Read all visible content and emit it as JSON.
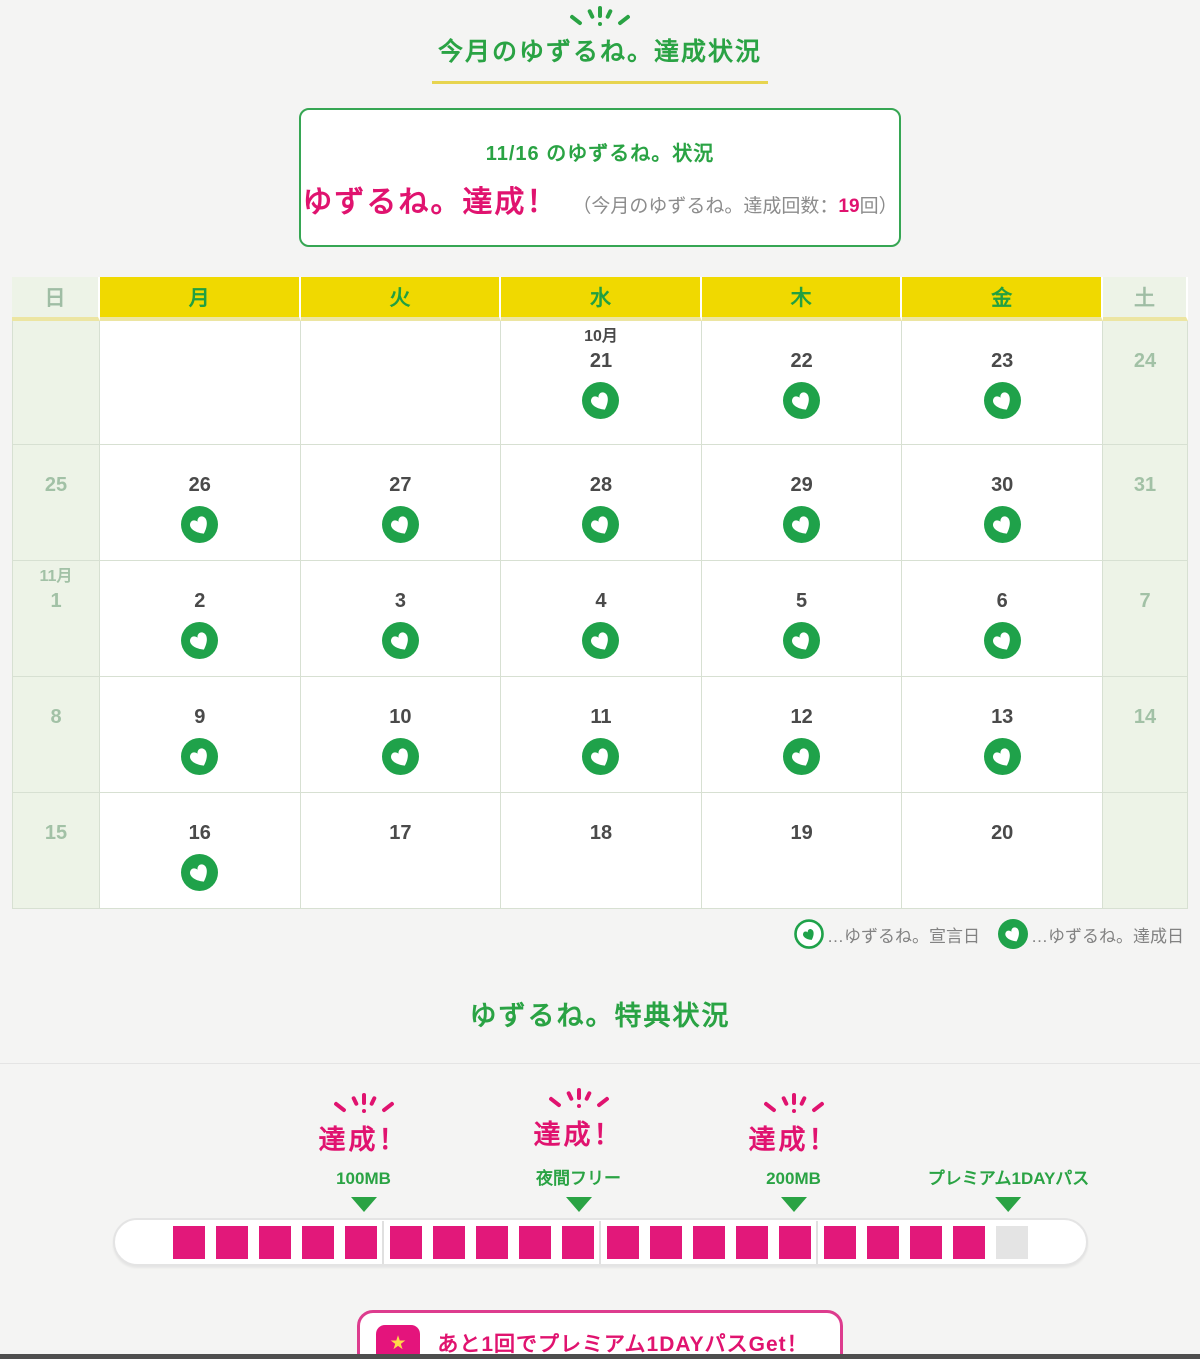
{
  "page": {
    "title": "今月のゆずるね。達成状況",
    "status_card": {
      "heading": "11/16 のゆずるね。状況",
      "result": "ゆずるね。達成！",
      "count_prefix": "（今月のゆずるね。達成回数：",
      "count_value": "19",
      "count_suffix": "回）"
    }
  },
  "calendar": {
    "day_headers": [
      "日",
      "月",
      "火",
      "水",
      "木",
      "金",
      "土"
    ],
    "rows": [
      [
        {
          "date": ""
        },
        {
          "date": ""
        },
        {
          "date": ""
        },
        {
          "month": "10月",
          "date": "21",
          "icon": "achieved"
        },
        {
          "date": "22",
          "icon": "achieved"
        },
        {
          "date": "23",
          "icon": "achieved"
        },
        {
          "date": "24"
        }
      ],
      [
        {
          "date": "25"
        },
        {
          "date": "26",
          "icon": "achieved"
        },
        {
          "date": "27",
          "icon": "achieved"
        },
        {
          "date": "28",
          "icon": "achieved"
        },
        {
          "date": "29",
          "icon": "achieved"
        },
        {
          "date": "30",
          "icon": "achieved"
        },
        {
          "date": "31"
        }
      ],
      [
        {
          "month": "11月",
          "date": "1"
        },
        {
          "date": "2",
          "icon": "achieved"
        },
        {
          "date": "3",
          "icon": "achieved"
        },
        {
          "date": "4",
          "icon": "achieved"
        },
        {
          "date": "5",
          "icon": "achieved"
        },
        {
          "date": "6",
          "icon": "achieved"
        },
        {
          "date": "7"
        }
      ],
      [
        {
          "date": "8"
        },
        {
          "date": "9",
          "icon": "achieved"
        },
        {
          "date": "10",
          "icon": "achieved"
        },
        {
          "date": "11",
          "icon": "achieved"
        },
        {
          "date": "12",
          "icon": "achieved"
        },
        {
          "date": "13",
          "icon": "achieved"
        },
        {
          "date": "14"
        }
      ],
      [
        {
          "date": "15"
        },
        {
          "date": "16",
          "icon": "achieved"
        },
        {
          "date": "17"
        },
        {
          "date": "18"
        },
        {
          "date": "19"
        },
        {
          "date": "20"
        },
        {
          "date": ""
        }
      ]
    ],
    "legend": [
      {
        "type": "declared",
        "icon": "yuzurune-declared-icon",
        "label": "…ゆずるね。宣言日"
      },
      {
        "type": "achieved",
        "icon": "yuzurune-achieved-icon",
        "label": "…ゆずるね。達成日"
      }
    ]
  },
  "rewards": {
    "title": "ゆずるね。特典状況",
    "milestones": [
      {
        "achieved": true,
        "status": "達成！",
        "label": "100MB",
        "at_square": 5
      },
      {
        "achieved": true,
        "status": "達成！",
        "label": "夜間フリー",
        "at_square": 10
      },
      {
        "achieved": true,
        "status": "達成！",
        "label": "200MB",
        "at_square": 15
      },
      {
        "achieved": false,
        "status": "",
        "label": "プレミアム1DAYパス",
        "at_square": 20
      }
    ],
    "progress": {
      "total_squares": 20,
      "filled_squares": 19
    },
    "message": "あと1回でプレミアム1DAYパスGet！"
  },
  "colors": {
    "green": "#2aa344",
    "icon_green": "#1fa24a",
    "yellow": "#f0d900",
    "underline_yellow": "#e7d44f",
    "pink_text": "#e0136f",
    "pink_square": "#e2187a",
    "weekend_bg": "#edf3e7",
    "weekend_text": "#a2c1a6",
    "unfilled_square": "#e4e4e4"
  }
}
